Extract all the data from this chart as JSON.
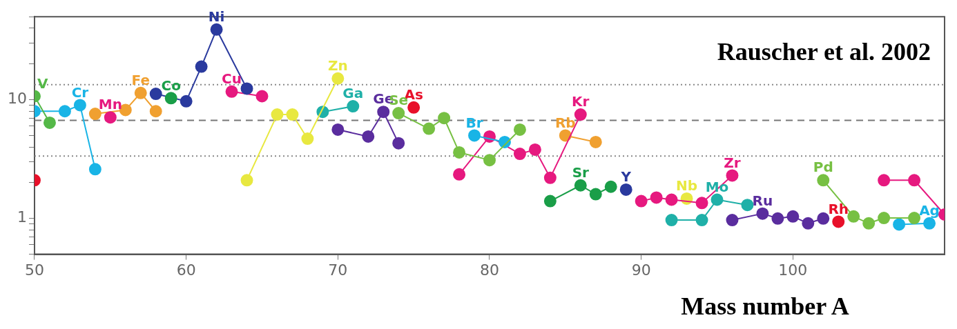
{
  "chart_data": {
    "type": "line",
    "xlabel": "Mass number A",
    "annotations": [
      "Rauscher et al. 2002"
    ],
    "log": "y",
    "grid": false,
    "marker": "circle",
    "line_style": "solid",
    "xlim": [
      50,
      110
    ],
    "xticks": [
      50,
      60,
      70,
      80,
      90,
      100
    ],
    "ylim": [
      0.5,
      50
    ],
    "yticks": [
      {
        "value": 0.5,
        "label": null
      },
      {
        "value": 0.6,
        "label": null
      },
      {
        "value": 0.7,
        "label": null
      },
      {
        "value": 0.8,
        "label": null
      },
      {
        "value": 0.9,
        "label": null
      },
      1,
      {
        "value": 2,
        "label": null
      },
      {
        "value": 3,
        "label": null
      },
      {
        "value": 4,
        "label": null
      },
      {
        "value": 5,
        "label": null
      },
      {
        "value": 6,
        "label": null
      },
      {
        "value": 7,
        "label": null
      },
      {
        "value": 8,
        "label": null
      },
      {
        "value": 9,
        "label": null
      },
      10,
      {
        "value": 20,
        "label": null
      },
      {
        "value": 30,
        "label": null
      },
      {
        "value": 40,
        "label": null
      },
      {
        "value": 50,
        "label": null
      }
    ],
    "ref_lines": [
      {
        "axis": "y",
        "value": 13.4,
        "color": "#888888",
        "line_style": "dotted"
      },
      {
        "axis": "y",
        "value": 6.7,
        "color": "#777777",
        "line_style": "dashed"
      },
      {
        "axis": "y",
        "value": 3.35,
        "color": "#888888",
        "line_style": "dotted"
      }
    ],
    "series": [
      {
        "color": "#e8102a",
        "x": [
          50
        ],
        "values": [
          2.1
        ]
      },
      {
        "name": "V",
        "color": "#55b848",
        "x": [
          50,
          51
        ],
        "values": [
          10.7,
          6.4
        ]
      },
      {
        "name": "Cr",
        "color": "#19b4e6",
        "x": [
          50,
          52,
          53,
          54
        ],
        "values": [
          8.0,
          8.0,
          9.0,
          2.6
        ]
      },
      {
        "name": "Mn",
        "color": "#e6197f",
        "x": [
          55
        ],
        "values": [
          7.1
        ]
      },
      {
        "name": "Fe",
        "color": "#f0a030",
        "x": [
          54,
          56,
          57,
          58
        ],
        "values": [
          7.6,
          8.2,
          11.4,
          8.0
        ]
      },
      {
        "name": "Co",
        "color": "#1a9e48",
        "x": [
          59
        ],
        "values": [
          10.3
        ]
      },
      {
        "name": "Ni",
        "color": "#2a3a9e",
        "x": [
          58,
          60,
          61,
          62,
          64
        ],
        "values": [
          11.2,
          9.7,
          19,
          39,
          12.4
        ]
      },
      {
        "name": "Cu",
        "color": "#e6197f",
        "x": [
          63,
          65
        ],
        "values": [
          11.7,
          10.7
        ]
      },
      {
        "name": "Zn",
        "color": "#e8e840",
        "x": [
          64,
          66,
          67,
          68,
          70
        ],
        "values": [
          2.1,
          7.5,
          7.5,
          4.7,
          15.1
        ]
      },
      {
        "name": "Ga",
        "color": "#1fb0a8",
        "x": [
          69,
          71
        ],
        "values": [
          7.9,
          8.8
        ]
      },
      {
        "name": "Ge",
        "color": "#5a2d9e",
        "x": [
          70,
          72,
          73,
          74
        ],
        "values": [
          5.6,
          4.9,
          7.9,
          4.3
        ]
      },
      {
        "name": "As",
        "color": "#e8102a",
        "x": [
          75
        ],
        "values": [
          8.6
        ]
      },
      {
        "name": "Se",
        "color": "#77c043",
        "x": [
          74,
          76,
          77,
          78,
          80,
          82
        ],
        "values": [
          7.7,
          5.7,
          7.0,
          3.6,
          3.1,
          5.6
        ]
      },
      {
        "name": "Br",
        "color": "#19b4e6",
        "x": [
          79,
          81
        ],
        "values": [
          5.0,
          4.4
        ]
      },
      {
        "name": "Kr",
        "color": "#e6197f",
        "x": [
          78,
          80,
          82,
          83,
          84,
          86
        ],
        "values": [
          2.35,
          4.9,
          3.5,
          3.8,
          2.2,
          7.5
        ]
      },
      {
        "name": "Rb",
        "color": "#f0a030",
        "x": [
          85,
          87
        ],
        "values": [
          5.0,
          4.4
        ]
      },
      {
        "name": "Sr",
        "color": "#1a9e48",
        "x": [
          84,
          86,
          87,
          88
        ],
        "values": [
          1.4,
          1.9,
          1.6,
          1.85
        ]
      },
      {
        "name": "Y",
        "color": "#2a3a9e",
        "x": [
          89
        ],
        "values": [
          1.75
        ]
      },
      {
        "name": "Zr",
        "color": "#e6197f",
        "x": [
          90,
          91,
          92,
          94,
          96
        ],
        "values": [
          1.4,
          1.5,
          1.44,
          1.35,
          2.3
        ]
      },
      {
        "name": "Nb",
        "color": "#e8e840",
        "x": [
          93
        ],
        "values": [
          1.47
        ]
      },
      {
        "name": "Mo",
        "color": "#1fb0a8",
        "x": [
          92,
          94,
          95,
          97
        ],
        "values": [
          0.97,
          0.97,
          1.44,
          1.3
        ]
      },
      {
        "name": "Ru",
        "color": "#5a2d9e",
        "x": [
          96,
          98,
          99,
          100,
          101,
          102
        ],
        "values": [
          0.97,
          1.1,
          1.0,
          1.04,
          0.91,
          1.0
        ]
      },
      {
        "name": "Rh",
        "color": "#e8102a",
        "x": [
          103
        ],
        "values": [
          0.94
        ]
      },
      {
        "name": "Pd",
        "color": "#77c043",
        "x": [
          102,
          104,
          105,
          106,
          108
        ],
        "values": [
          2.1,
          1.04,
          0.91,
          1.01,
          1.01
        ]
      },
      {
        "name": "Ag",
        "color": "#19b4e6",
        "x": [
          107,
          109
        ],
        "values": [
          0.89,
          0.91
        ]
      },
      {
        "color": "#e6197f",
        "x": [
          106,
          108,
          110
        ],
        "values": [
          2.1,
          2.1,
          1.08
        ]
      }
    ]
  }
}
